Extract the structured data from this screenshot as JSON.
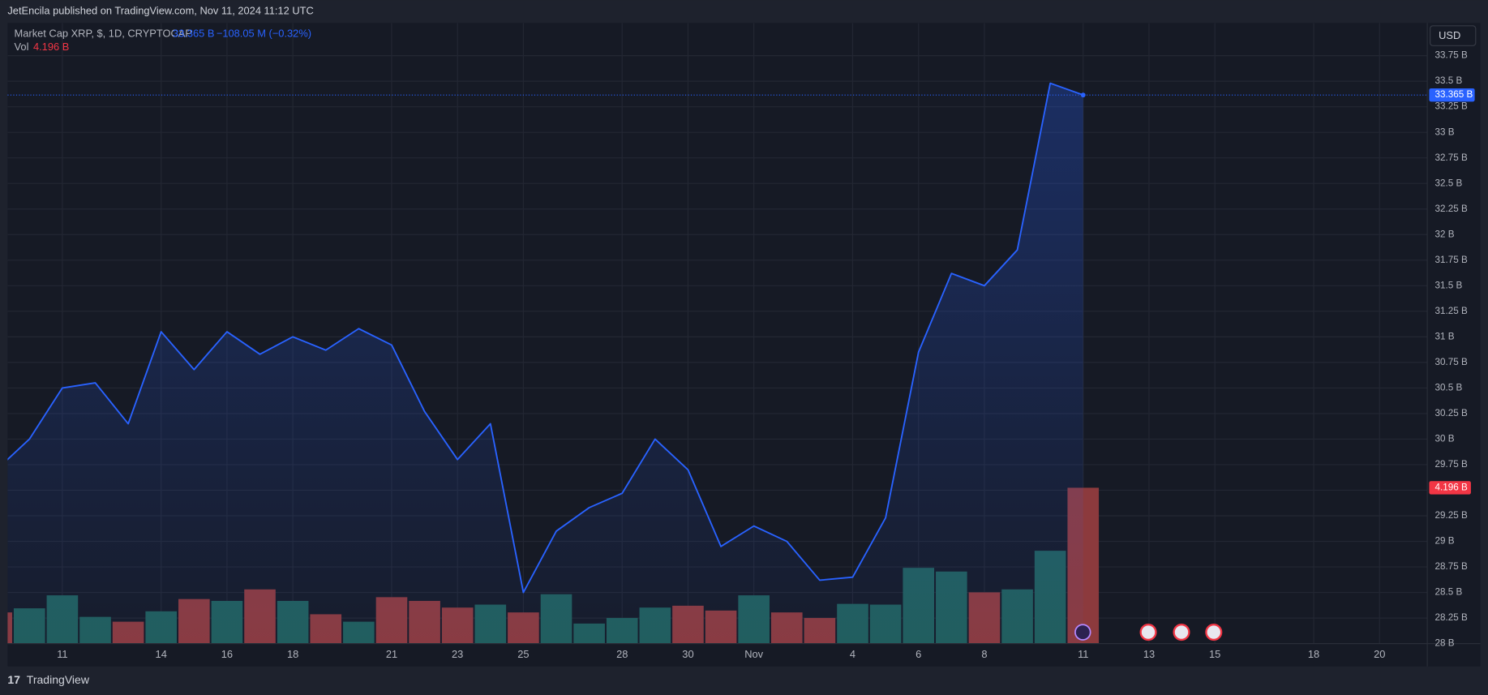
{
  "header": {
    "publisher": "JetEncila published on TradingView.com, Nov 11, 2024 11:12 UTC",
    "currency": "USD",
    "brand": "TradingView"
  },
  "chart_data": {
    "type": "line",
    "title": "Market Cap XRP, $, 1D, CRYPTOCAP",
    "last_value_label": "33.365 B",
    "change_label": "−108.05 M (−0.32%)",
    "volume_title": "Vol",
    "volume_last_label": "4.196 B",
    "categories": [
      null,
      null,
      "11",
      null,
      null,
      "14",
      null,
      "16",
      null,
      "18",
      null,
      null,
      "21",
      null,
      "23",
      null,
      "25",
      null,
      null,
      "28",
      null,
      "30",
      null,
      "Nov",
      null,
      null,
      "4",
      null,
      "6",
      null,
      "8",
      null,
      null,
      "11",
      null,
      "13",
      null,
      "15",
      null,
      null,
      "18",
      null,
      "20"
    ],
    "series": [
      {
        "name": "Market Cap XRP",
        "color": "#2962ff",
        "values": [
          29.7,
          30.0,
          30.5,
          30.55,
          30.15,
          31.05,
          30.68,
          31.05,
          30.83,
          31.0,
          30.87,
          31.08,
          30.92,
          30.27,
          29.8,
          30.15,
          28.5,
          29.1,
          29.33,
          29.47,
          30.0,
          29.7,
          28.95,
          29.15,
          29.0,
          28.62,
          28.65,
          29.23,
          30.85,
          31.62,
          31.5,
          31.85,
          33.48,
          33.365,
          null,
          null,
          null,
          null,
          null,
          null,
          null,
          null,
          null
        ]
      },
      {
        "name": "Vol",
        "axis": "y2",
        "colors": [
          "#8c3a3d",
          "#215e5a",
          "#215e5a",
          "#215e5a",
          "#8c3a3d",
          "#215e5a",
          "#8c3a3d",
          "#215e5a",
          "#8c3a3d",
          "#215e5a",
          "#8c3a3d",
          "#215e5a",
          "#8c3a3d",
          "#8c3a3d",
          "#8c3a3d",
          "#215e5a",
          "#8c3a3d",
          "#215e5a",
          "#215e5a",
          "#215e5a",
          "#215e5a",
          "#8c3a3d",
          "#8c3a3d",
          "#215e5a",
          "#8c3a3d",
          "#8c3a3d",
          "#215e5a",
          "#215e5a",
          "#215e5a",
          "#215e5a",
          "#8c3a3d",
          "#215e5a",
          "#215e5a",
          "#8c3a3d",
          null,
          null,
          null,
          null,
          null,
          null,
          null,
          null,
          null
        ],
        "values": [
          0.84,
          0.95,
          1.3,
          0.72,
          0.59,
          0.87,
          1.2,
          1.15,
          1.46,
          1.15,
          0.79,
          0.59,
          1.25,
          1.15,
          0.97,
          1.05,
          0.84,
          1.33,
          0.54,
          0.69,
          0.97,
          1.02,
          0.89,
          1.3,
          0.84,
          0.69,
          1.07,
          1.05,
          2.04,
          1.94,
          1.38,
          1.46,
          2.5,
          4.196,
          null,
          null,
          null,
          null,
          null,
          null,
          null,
          null,
          null
        ]
      }
    ],
    "ylim": [
      28,
      34.07
    ],
    "yticks": [
      {
        "value": 28,
        "label": "28 B"
      },
      {
        "value": 28.25,
        "label": "28.25 B"
      },
      {
        "value": 28.5,
        "label": "28.5 B"
      },
      {
        "value": 28.75,
        "label": "28.75 B"
      },
      {
        "value": 29,
        "label": "29 B"
      },
      {
        "value": 29.25,
        "label": "29.25 B"
      },
      {
        "value": 29.5,
        "label": "29.5 B"
      },
      {
        "value": 29.75,
        "label": "29.75 B"
      },
      {
        "value": 30,
        "label": "30 B"
      },
      {
        "value": 30.25,
        "label": "30.25 B"
      },
      {
        "value": 30.5,
        "label": "30.5 B"
      },
      {
        "value": 30.75,
        "label": "30.75 B"
      },
      {
        "value": 31,
        "label": "31 B"
      },
      {
        "value": 31.25,
        "label": "31.25 B"
      },
      {
        "value": 31.5,
        "label": "31.5 B"
      },
      {
        "value": 31.75,
        "label": "31.75 B"
      },
      {
        "value": 32,
        "label": "32 B"
      },
      {
        "value": 32.25,
        "label": "32.25 B"
      },
      {
        "value": 32.5,
        "label": "32.5 B"
      },
      {
        "value": 32.75,
        "label": "32.75 B"
      },
      {
        "value": 33,
        "label": "33 B"
      },
      {
        "value": 33.25,
        "label": "33.25 B"
      },
      {
        "value": 33.5,
        "label": "33.5 B"
      },
      {
        "value": 33.75,
        "label": "33.75 B"
      }
    ],
    "y2lim": [
      0,
      16.71
    ],
    "grid": true
  }
}
